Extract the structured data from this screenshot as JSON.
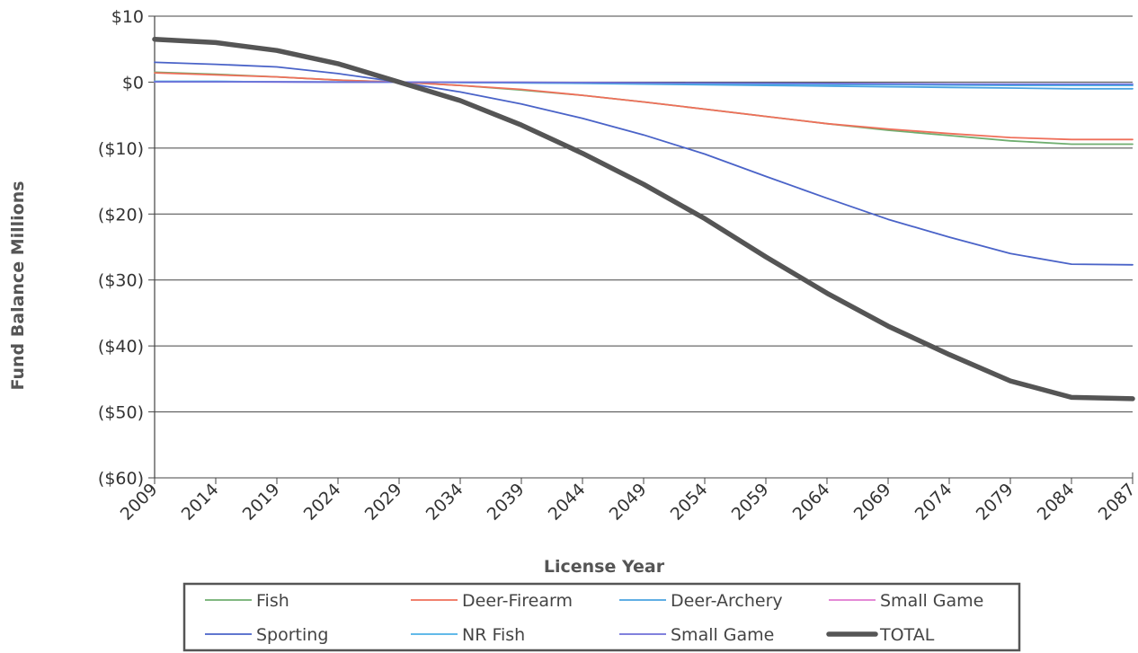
{
  "chart_data": {
    "type": "line",
    "title": "",
    "xlabel": "License Year",
    "ylabel": "Fund Balance  Millions",
    "ylim": [
      -60,
      10
    ],
    "yticks": [
      {
        "value": 10,
        "label": "$10"
      },
      {
        "value": 0,
        "label": "$0"
      },
      {
        "value": -10,
        "label": "($10)"
      },
      {
        "value": -20,
        "label": "($20)"
      },
      {
        "value": -30,
        "label": "($30)"
      },
      {
        "value": -40,
        "label": "($40)"
      },
      {
        "value": -50,
        "label": "($50)"
      },
      {
        "value": -60,
        "label": "($60)"
      }
    ],
    "x": [
      "2009",
      "2014",
      "2019",
      "2024",
      "2029",
      "2034",
      "2039",
      "2044",
      "2049",
      "2054",
      "2059",
      "2064",
      "2069",
      "2074",
      "2079",
      "2084",
      "2087"
    ],
    "grid": "horizontal",
    "legend_position": "bottom",
    "series": [
      {
        "name": "Fish",
        "color": "#6fae6f",
        "width": 1.8,
        "values": [
          1.5,
          1.2,
          0.8,
          0.3,
          0,
          -0.5,
          -1.2,
          -2.0,
          -3.0,
          -4.1,
          -5.2,
          -6.3,
          -7.3,
          -8.1,
          -8.9,
          -9.4,
          -9.4
        ]
      },
      {
        "name": "Deer-Firearm",
        "color": "#ef6f5a",
        "width": 1.8,
        "values": [
          1.4,
          1.1,
          0.8,
          0.3,
          0,
          -0.5,
          -1.1,
          -2.0,
          -3.0,
          -4.1,
          -5.2,
          -6.3,
          -7.1,
          -7.8,
          -8.4,
          -8.7,
          -8.7
        ]
      },
      {
        "name": "Deer-Archery",
        "color": "#4aa3e0",
        "width": 1.8,
        "values": [
          0.1,
          0.1,
          0.05,
          0.02,
          0,
          -0.05,
          -0.1,
          -0.2,
          -0.3,
          -0.4,
          -0.5,
          -0.6,
          -0.7,
          -0.8,
          -0.9,
          -1.0,
          -1.0
        ]
      },
      {
        "name": "Small Game",
        "color": "#e07ad0",
        "width": 1.8,
        "values": [
          0.05,
          0.05,
          0.03,
          0.01,
          0,
          -0.02,
          -0.05,
          -0.1,
          -0.15,
          -0.2,
          -0.25,
          -0.3,
          -0.35,
          -0.4,
          -0.45,
          -0.5,
          -0.5
        ]
      },
      {
        "name": "Sporting",
        "color": "#4a63c8",
        "width": 1.8,
        "values": [
          3.0,
          2.7,
          2.3,
          1.3,
          0,
          -1.5,
          -3.3,
          -5.5,
          -8.0,
          -10.9,
          -14.3,
          -17.6,
          -20.8,
          -23.5,
          -26.0,
          -27.6,
          -27.7
        ]
      },
      {
        "name": "NR Fish",
        "color": "#4cb0e6",
        "width": 1.8,
        "values": [
          0.1,
          0.1,
          0.05,
          0.02,
          0,
          -0.05,
          -0.1,
          -0.15,
          -0.2,
          -0.25,
          -0.3,
          -0.35,
          -0.4,
          -0.45,
          -0.5,
          -0.5,
          -0.5
        ]
      },
      {
        "name": "Small Game",
        "color": "#6f6fd8",
        "width": 1.8,
        "values": [
          0.05,
          0.05,
          0.03,
          0.01,
          0,
          -0.02,
          -0.04,
          -0.07,
          -0.1,
          -0.13,
          -0.16,
          -0.2,
          -0.24,
          -0.28,
          -0.3,
          -0.3,
          -0.3
        ]
      },
      {
        "name": "TOTAL",
        "color": "#555555",
        "width": 5.5,
        "values": [
          6.5,
          6.0,
          4.8,
          2.8,
          0,
          -2.8,
          -6.5,
          -10.8,
          -15.5,
          -20.7,
          -26.5,
          -32.0,
          -37.0,
          -41.3,
          -45.3,
          -47.8,
          -48.0
        ]
      }
    ]
  }
}
